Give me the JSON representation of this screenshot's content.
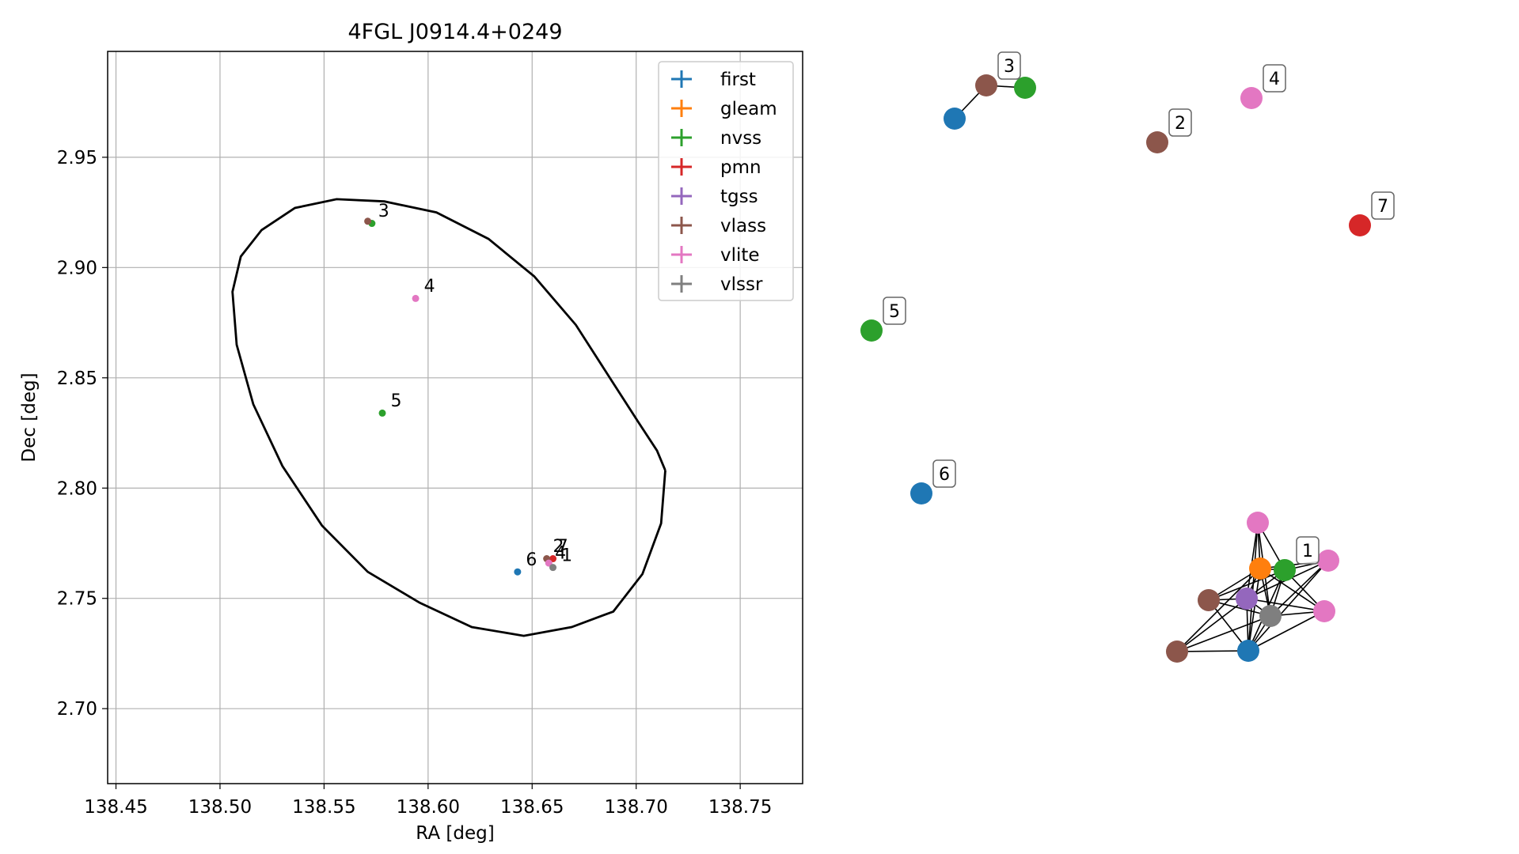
{
  "chart_data": [
    {
      "type": "scatter",
      "title": "4FGL J0914.4+0249",
      "xlabel": "RA [deg]",
      "ylabel": "Dec [deg]",
      "xlim": [
        138.446,
        138.78
      ],
      "ylim": [
        2.666,
        2.998
      ],
      "xticks": [
        138.45,
        138.5,
        138.55,
        138.6,
        138.65,
        138.7,
        138.75
      ],
      "xtick_labels": [
        "138.45",
        "138.50",
        "138.55",
        "138.60",
        "138.65",
        "138.70",
        "138.75"
      ],
      "yticks": [
        2.7,
        2.75,
        2.8,
        2.85,
        2.9,
        2.95
      ],
      "ytick_labels": [
        "2.70",
        "2.75",
        "2.80",
        "2.85",
        "2.90",
        "2.95"
      ],
      "grid": true,
      "legend_position": "top-right",
      "series": [
        {
          "name": "first",
          "color": "#1f77b4",
          "points": [
            [
              138.643,
              2.762
            ]
          ]
        },
        {
          "name": "gleam",
          "color": "#ff7f0e",
          "points": []
        },
        {
          "name": "nvss",
          "color": "#2ca02c",
          "points": [
            [
              138.573,
              2.92
            ],
            [
              138.578,
              2.834
            ]
          ]
        },
        {
          "name": "pmn",
          "color": "#d62728",
          "points": [
            [
              138.66,
              2.768
            ]
          ]
        },
        {
          "name": "tgss",
          "color": "#9467bd",
          "points": []
        },
        {
          "name": "vlass",
          "color": "#8c564b",
          "points": [
            [
              138.571,
              2.921
            ],
            [
              138.657,
              2.768
            ]
          ]
        },
        {
          "name": "vlite",
          "color": "#e377c2",
          "points": [
            [
              138.594,
              2.886
            ],
            [
              138.658,
              2.766
            ]
          ]
        },
        {
          "name": "vlssr",
          "color": "#7f7f7f",
          "points": [
            [
              138.66,
              2.764
            ]
          ]
        }
      ],
      "ellipse": {
        "ra": [
          138.714,
          138.712,
          138.703,
          138.689,
          138.669,
          138.646,
          138.621,
          138.596,
          138.571,
          138.549,
          138.53,
          138.516,
          138.508,
          138.506,
          138.51,
          138.52,
          138.536,
          138.556,
          138.579,
          138.604,
          138.629,
          138.651,
          138.671,
          138.688,
          138.701,
          138.71,
          138.714
        ],
        "dec": [
          2.808,
          2.784,
          2.761,
          2.744,
          2.737,
          2.733,
          2.737,
          2.748,
          2.762,
          2.783,
          2.81,
          2.838,
          2.865,
          2.889,
          2.905,
          2.917,
          2.927,
          2.931,
          2.93,
          2.925,
          2.913,
          2.896,
          2.874,
          2.849,
          2.83,
          2.817,
          2.808
        ]
      },
      "annotations": [
        {
          "text": "3",
          "ra": 138.576,
          "dec": 2.923
        },
        {
          "text": "4",
          "ra": 138.598,
          "dec": 2.889
        },
        {
          "text": "5",
          "ra": 138.582,
          "dec": 2.837
        },
        {
          "text": "6",
          "ra": 138.647,
          "dec": 2.765
        },
        {
          "text": "2",
          "ra": 138.66,
          "dec": 2.771
        },
        {
          "text": "7",
          "ra": 138.662,
          "dec": 2.771
        },
        {
          "text": "4",
          "ra": 138.661,
          "dec": 2.768
        },
        {
          "text": "1",
          "ra": 138.664,
          "dec": 2.767
        }
      ]
    },
    {
      "type": "network",
      "nodes": [
        {
          "id": "n1",
          "color": "#1f77b4"
        },
        {
          "id": "n2",
          "color": "#8c564b"
        },
        {
          "id": "n3",
          "color": "#2ca02c"
        },
        {
          "id": "n4",
          "color": "#8c564b"
        },
        {
          "id": "n5",
          "color": "#e377c2"
        },
        {
          "id": "n6",
          "color": "#d62728"
        },
        {
          "id": "n7",
          "color": "#2ca02c"
        },
        {
          "id": "n8",
          "color": "#1f77b4"
        },
        {
          "id": "c1",
          "color": "#e377c2"
        },
        {
          "id": "c2",
          "color": "#2ca02c"
        },
        {
          "id": "c3",
          "color": "#e377c2"
        },
        {
          "id": "c4",
          "color": "#ff7f0e"
        },
        {
          "id": "c5",
          "color": "#8c564b"
        },
        {
          "id": "c6",
          "color": "#9467bd"
        },
        {
          "id": "c7",
          "color": "#7f7f7f"
        },
        {
          "id": "c8",
          "color": "#e377c2"
        },
        {
          "id": "c9",
          "color": "#8c564b"
        },
        {
          "id": "c10",
          "color": "#1f77b4"
        }
      ],
      "edges": [
        [
          "n1",
          "n2"
        ],
        [
          "n2",
          "n3"
        ],
        [
          "c1",
          "c4"
        ],
        [
          "c1",
          "c6"
        ],
        [
          "c1",
          "c7"
        ],
        [
          "c1",
          "c2"
        ],
        [
          "c1",
          "c10"
        ],
        [
          "c2",
          "c3"
        ],
        [
          "c2",
          "c4"
        ],
        [
          "c2",
          "c5"
        ],
        [
          "c2",
          "c6"
        ],
        [
          "c2",
          "c7"
        ],
        [
          "c2",
          "c8"
        ],
        [
          "c2",
          "c10"
        ],
        [
          "c3",
          "c4"
        ],
        [
          "c3",
          "c6"
        ],
        [
          "c3",
          "c7"
        ],
        [
          "c3",
          "c10"
        ],
        [
          "c4",
          "c5"
        ],
        [
          "c4",
          "c6"
        ],
        [
          "c4",
          "c7"
        ],
        [
          "c4",
          "c8"
        ],
        [
          "c4",
          "c9"
        ],
        [
          "c4",
          "c10"
        ],
        [
          "c5",
          "c6"
        ],
        [
          "c5",
          "c7"
        ],
        [
          "c5",
          "c10"
        ],
        [
          "c6",
          "c7"
        ],
        [
          "c6",
          "c8"
        ],
        [
          "c6",
          "c9"
        ],
        [
          "c6",
          "c10"
        ],
        [
          "c7",
          "c8"
        ],
        [
          "c7",
          "c9"
        ],
        [
          "c7",
          "c10"
        ],
        [
          "c8",
          "c10"
        ],
        [
          "c9",
          "c10"
        ]
      ],
      "labels": [
        {
          "text": "3",
          "node": "n2"
        },
        {
          "text": "2",
          "node": "n4"
        },
        {
          "text": "4",
          "node": "n5"
        },
        {
          "text": "7",
          "node": "n6"
        },
        {
          "text": "5",
          "node": "n7"
        },
        {
          "text": "6",
          "node": "n8"
        },
        {
          "text": "1",
          "node": "c2"
        }
      ]
    }
  ]
}
